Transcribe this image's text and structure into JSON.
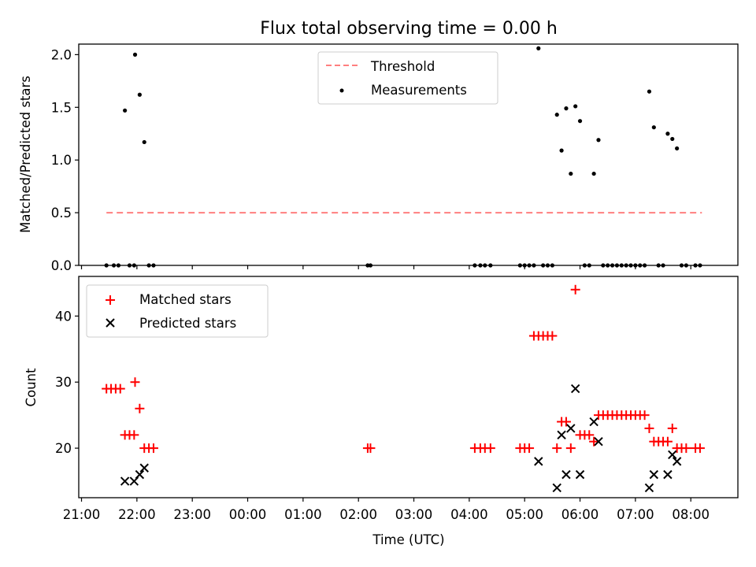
{
  "chart_data": [
    {
      "type": "scatter",
      "title": "Flux total observing time = 0.00 h",
      "xlabel": "",
      "ylabel": "Matched/Predicted stars",
      "ylim": [
        0,
        2.1
      ],
      "yticks": [
        "0.0",
        "0.5",
        "1.0",
        "1.5",
        "2.0"
      ],
      "legend": {
        "position": "top-center",
        "entries": [
          "Threshold",
          "Measurements"
        ]
      },
      "threshold": {
        "name": "Threshold",
        "value": 0.5,
        "x_range": [
          "21:27",
          "08:12"
        ],
        "color": "#ff7f7f"
      },
      "series": [
        {
          "name": "Measurements",
          "color": "#000000",
          "points": [
            [
              "21:27",
              0
            ],
            [
              "21:35",
              0
            ],
            [
              "21:40",
              0
            ],
            [
              "21:47",
              1.47
            ],
            [
              "21:52",
              0
            ],
            [
              "21:57",
              0
            ],
            [
              "21:58",
              2.0
            ],
            [
              "22:03",
              1.62
            ],
            [
              "22:08",
              1.17
            ],
            [
              "22:13",
              0
            ],
            [
              "22:18",
              0
            ],
            [
              "02:10",
              0
            ],
            [
              "02:13",
              0
            ],
            [
              "04:06",
              0
            ],
            [
              "04:12",
              0
            ],
            [
              "04:17",
              0
            ],
            [
              "04:23",
              0
            ],
            [
              "04:55",
              0
            ],
            [
              "05:00",
              0
            ],
            [
              "05:05",
              0
            ],
            [
              "05:10",
              0
            ],
            [
              "05:15",
              2.06
            ],
            [
              "05:20",
              0
            ],
            [
              "05:25",
              0
            ],
            [
              "05:30",
              0
            ],
            [
              "05:35",
              1.43
            ],
            [
              "05:40",
              1.09
            ],
            [
              "05:45",
              1.49
            ],
            [
              "05:50",
              0.87
            ],
            [
              "05:55",
              1.51
            ],
            [
              "06:00",
              1.37
            ],
            [
              "06:05",
              0
            ],
            [
              "06:10",
              0
            ],
            [
              "06:15",
              0.87
            ],
            [
              "06:20",
              1.19
            ],
            [
              "06:25",
              0
            ],
            [
              "06:30",
              0
            ],
            [
              "06:35",
              0
            ],
            [
              "06:40",
              0
            ],
            [
              "06:45",
              0
            ],
            [
              "06:50",
              0
            ],
            [
              "06:55",
              0
            ],
            [
              "07:00",
              0
            ],
            [
              "07:05",
              0
            ],
            [
              "07:10",
              0
            ],
            [
              "07:15",
              1.65
            ],
            [
              "07:20",
              1.31
            ],
            [
              "07:25",
              0
            ],
            [
              "07:30",
              0
            ],
            [
              "07:35",
              1.25
            ],
            [
              "07:40",
              1.2
            ],
            [
              "07:45",
              1.11
            ],
            [
              "07:50",
              0
            ],
            [
              "07:55",
              0
            ],
            [
              "08:05",
              0
            ],
            [
              "08:10",
              0
            ]
          ]
        }
      ]
    },
    {
      "type": "scatter",
      "title": "",
      "xlabel": "Time (UTC)",
      "ylabel": "Count",
      "ylim": [
        12.5,
        46
      ],
      "yticks": [
        "20",
        "30",
        "40"
      ],
      "xticks": [
        "21:00",
        "22:00",
        "23:00",
        "00:00",
        "01:00",
        "02:00",
        "03:00",
        "04:00",
        "05:00",
        "06:00",
        "07:00",
        "08:00"
      ],
      "legend": {
        "position": "top-left",
        "entries": [
          "Matched stars",
          "Predicted stars"
        ]
      },
      "series": [
        {
          "name": "Matched stars",
          "marker": "+",
          "color": "#ff0000",
          "points": [
            [
              "21:27",
              29
            ],
            [
              "21:32",
              29
            ],
            [
              "21:37",
              29
            ],
            [
              "21:42",
              29
            ],
            [
              "21:47",
              22
            ],
            [
              "21:52",
              22
            ],
            [
              "21:57",
              22
            ],
            [
              "21:58",
              30
            ],
            [
              "22:03",
              26
            ],
            [
              "22:08",
              20
            ],
            [
              "22:13",
              20
            ],
            [
              "22:18",
              20
            ],
            [
              "02:10",
              20
            ],
            [
              "02:13",
              20
            ],
            [
              "04:06",
              20
            ],
            [
              "04:12",
              20
            ],
            [
              "04:17",
              20
            ],
            [
              "04:23",
              20
            ],
            [
              "04:55",
              20
            ],
            [
              "05:00",
              20
            ],
            [
              "05:05",
              20
            ],
            [
              "05:10",
              37
            ],
            [
              "05:15",
              37
            ],
            [
              "05:20",
              37
            ],
            [
              "05:25",
              37
            ],
            [
              "05:30",
              37
            ],
            [
              "05:35",
              20
            ],
            [
              "05:40",
              24
            ],
            [
              "05:45",
              24
            ],
            [
              "05:50",
              20
            ],
            [
              "05:55",
              44
            ],
            [
              "06:00",
              22
            ],
            [
              "06:05",
              22
            ],
            [
              "06:10",
              22
            ],
            [
              "06:15",
              21
            ],
            [
              "06:20",
              25
            ],
            [
              "06:25",
              25
            ],
            [
              "06:30",
              25
            ],
            [
              "06:35",
              25
            ],
            [
              "06:40",
              25
            ],
            [
              "06:45",
              25
            ],
            [
              "06:50",
              25
            ],
            [
              "06:55",
              25
            ],
            [
              "07:00",
              25
            ],
            [
              "07:05",
              25
            ],
            [
              "07:10",
              25
            ],
            [
              "07:15",
              23
            ],
            [
              "07:20",
              21
            ],
            [
              "07:25",
              21
            ],
            [
              "07:30",
              21
            ],
            [
              "07:35",
              21
            ],
            [
              "07:40",
              23
            ],
            [
              "07:45",
              20
            ],
            [
              "07:50",
              20
            ],
            [
              "07:55",
              20
            ],
            [
              "08:05",
              20
            ],
            [
              "08:10",
              20
            ]
          ]
        },
        {
          "name": "Predicted stars",
          "marker": "x",
          "color": "#000000",
          "points": [
            [
              "21:47",
              15
            ],
            [
              "21:57",
              15
            ],
            [
              "22:03",
              16
            ],
            [
              "22:08",
              17
            ],
            [
              "05:15",
              18
            ],
            [
              "05:35",
              14
            ],
            [
              "05:40",
              22
            ],
            [
              "05:45",
              16
            ],
            [
              "05:50",
              23
            ],
            [
              "05:55",
              29
            ],
            [
              "06:00",
              16
            ],
            [
              "06:15",
              24
            ],
            [
              "06:20",
              21
            ],
            [
              "07:15",
              14
            ],
            [
              "07:20",
              16
            ],
            [
              "07:35",
              16
            ],
            [
              "07:40",
              19
            ],
            [
              "07:45",
              18
            ]
          ]
        }
      ]
    }
  ]
}
